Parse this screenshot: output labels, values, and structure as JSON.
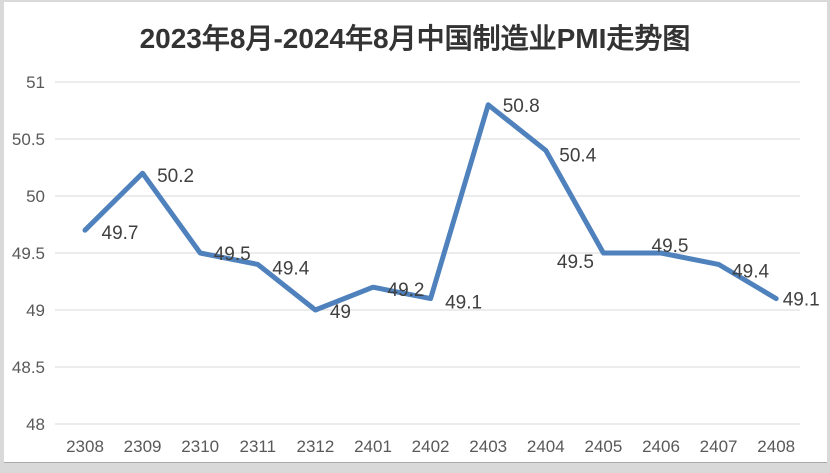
{
  "chart_data": {
    "type": "line",
    "title": "2023年8月-2024年8月中国制造业PMI走势图",
    "categories": [
      "2308",
      "2309",
      "2310",
      "2311",
      "2312",
      "2401",
      "2402",
      "2403",
      "2404",
      "2405",
      "2406",
      "2407",
      "2408"
    ],
    "values": [
      49.7,
      50.2,
      49.5,
      49.4,
      49,
      49.2,
      49.1,
      50.8,
      50.4,
      49.5,
      49.5,
      49.4,
      49.1
    ],
    "data_labels": [
      "49.7",
      "50.2",
      "49.5",
      "49.4",
      "49",
      "49.2",
      "49.1",
      "50.8",
      "50.4",
      "49.5",
      "49.5",
      "49.4",
      "49.1"
    ],
    "xlabel": "",
    "ylabel": "",
    "ylim": [
      48,
      51
    ],
    "y_ticks": [
      "48",
      "48.5",
      "49",
      "49.5",
      "50",
      "50.5",
      "51"
    ],
    "grid": true,
    "legend": "none",
    "colors": {
      "line": "#4F81BD",
      "gridline": "#D9D9D9",
      "tick_label": "#595959",
      "data_label": "#404040",
      "title": "#333333",
      "chart_background": "#FFFFFF",
      "page_background": "#D9D9D9"
    }
  }
}
